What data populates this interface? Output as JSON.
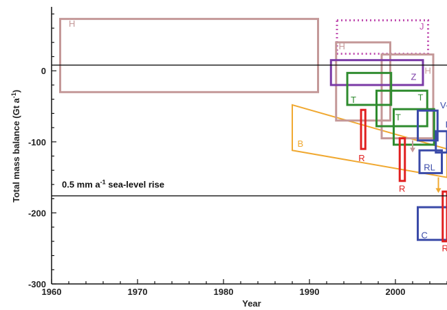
{
  "chart_data": {
    "type": "box-ranges",
    "title": "",
    "xlabel": "Year",
    "ylabel": "Total mass balance (Gt a",
    "ylabel_sup": "-1",
    "ylabel_close": ")",
    "xlim": [
      1960,
      2006
    ],
    "ylim": [
      -300,
      90
    ],
    "xticks": [
      "1960",
      "1970",
      "1980",
      "1990",
      "2000"
    ],
    "yticks": [
      "0",
      "-100",
      "-200",
      "-300"
    ],
    "xtick_values": [
      1960,
      1970,
      1980,
      1990,
      2000
    ],
    "ytick_values": [
      0,
      -100,
      -200,
      -300
    ],
    "grid": false,
    "reference_lines": [
      {
        "y": 8
      },
      {
        "y": -176,
        "label": "0.5 mm",
        "label_unit": "a",
        "label_sup": "-1",
        "label_tail": "sea-level rise"
      }
    ],
    "colors": {
      "H": "#c49898",
      "J": "#c04eb0",
      "Z": "#7a3aa6",
      "T": "#2e8b2e",
      "B": "#f0a830",
      "R": "#e02020",
      "V": "#3a4aa8",
      "RL": "#3a4aa8",
      "C": "#3a4aa8",
      "I": "#3a4aa8"
    },
    "boxes": [
      {
        "label": "H",
        "x0": 1961.0,
        "x1": 1991.0,
        "y0": -30,
        "y1": 73
      },
      {
        "label": "J",
        "x0": 1993.2,
        "x1": 2003.8,
        "y0": 24,
        "y1": 71,
        "dashed": true
      },
      {
        "label": "H",
        "x0": 1993.1,
        "x1": 1999.4,
        "y0": -70,
        "y1": 40
      },
      {
        "label": "H",
        "x0": 1998.4,
        "x1": 2004.4,
        "y0": -95,
        "y1": 23
      },
      {
        "label": "Z",
        "x0": 1992.5,
        "x1": 2003.2,
        "y0": -20,
        "y1": 15
      },
      {
        "label": "T",
        "x0": 1994.4,
        "x1": 1999.5,
        "y0": -48,
        "y1": -3
      },
      {
        "label": "T",
        "x0": 1997.8,
        "x1": 2003.7,
        "y0": -78,
        "y1": -28
      },
      {
        "label": "T",
        "x0": 1999.8,
        "x1": 2004.5,
        "y0": -104,
        "y1": -54
      },
      {
        "label": "V",
        "x0": 2002.6,
        "x1": 2004.9,
        "y0": -98,
        "y1": -56
      },
      {
        "label": "I",
        "x0": 2004.7,
        "x1": 2006.0,
        "y0": -115,
        "y1": -85
      },
      {
        "label": "RL",
        "x0": 2002.8,
        "x1": 2005.4,
        "y0": -144,
        "y1": -112
      },
      {
        "label": "C",
        "x0": 2002.6,
        "x1": 2006.0,
        "y0": -238,
        "y1": -192
      },
      {
        "label": "R",
        "x0": 1996.0,
        "x1": 1996.5,
        "y0": -110,
        "y1": -55
      },
      {
        "label": "R",
        "x0": 2000.5,
        "x1": 2001.1,
        "y0": -155,
        "y1": -95
      },
      {
        "label": "R",
        "x0": 2005.5,
        "x1": 2006.0,
        "y0": -240,
        "y1": -170
      }
    ],
    "trends": [
      {
        "label": "B",
        "points": [
          [
            1988,
            -48
          ],
          [
            2006,
            -110
          ],
          [
            2006,
            -150
          ],
          [
            1988,
            -112
          ]
        ]
      }
    ],
    "arrows": [
      {
        "color": "B",
        "x": 2005.0,
        "y_from": -150,
        "y_to": -172
      },
      {
        "color": "H",
        "x": 2002.0,
        "y_from": -98,
        "y_to": -115
      }
    ],
    "box_text": [
      {
        "text": "H",
        "color": "H",
        "x": 1962.0,
        "y": 62
      },
      {
        "text": "J",
        "color": "J",
        "x": 2002.8,
        "y": 58
      },
      {
        "text": "H",
        "color": "H",
        "x": 1993.4,
        "y": 30
      },
      {
        "text": "H",
        "color": "H",
        "x": 2003.4,
        "y": -4
      },
      {
        "text": "Z",
        "color": "Z",
        "x": 2001.8,
        "y": -13
      },
      {
        "text": "T",
        "color": "T",
        "x": 1994.8,
        "y": -45
      },
      {
        "text": "T",
        "color": "T",
        "x": 2002.6,
        "y": -42
      },
      {
        "text": "T",
        "color": "T",
        "x": 2000.0,
        "y": -70
      },
      {
        "text": "V-",
        "color": "V",
        "x": 2005.2,
        "y": -53
      },
      {
        "text": "I",
        "color": "I",
        "x": 2005.8,
        "y": -80
      },
      {
        "text": "B",
        "color": "B",
        "x": 1988.6,
        "y": -107
      },
      {
        "text": "R",
        "color": "R",
        "x": 1995.7,
        "y": -127
      },
      {
        "text": "R",
        "color": "R",
        "x": 2000.4,
        "y": -170
      },
      {
        "text": "RL",
        "color": "RL",
        "x": 2003.3,
        "y": -140
      },
      {
        "text": "C",
        "color": "C",
        "x": 2003.0,
        "y": -236
      },
      {
        "text": "R",
        "color": "R",
        "x": 2005.4,
        "y": -254
      }
    ]
  }
}
